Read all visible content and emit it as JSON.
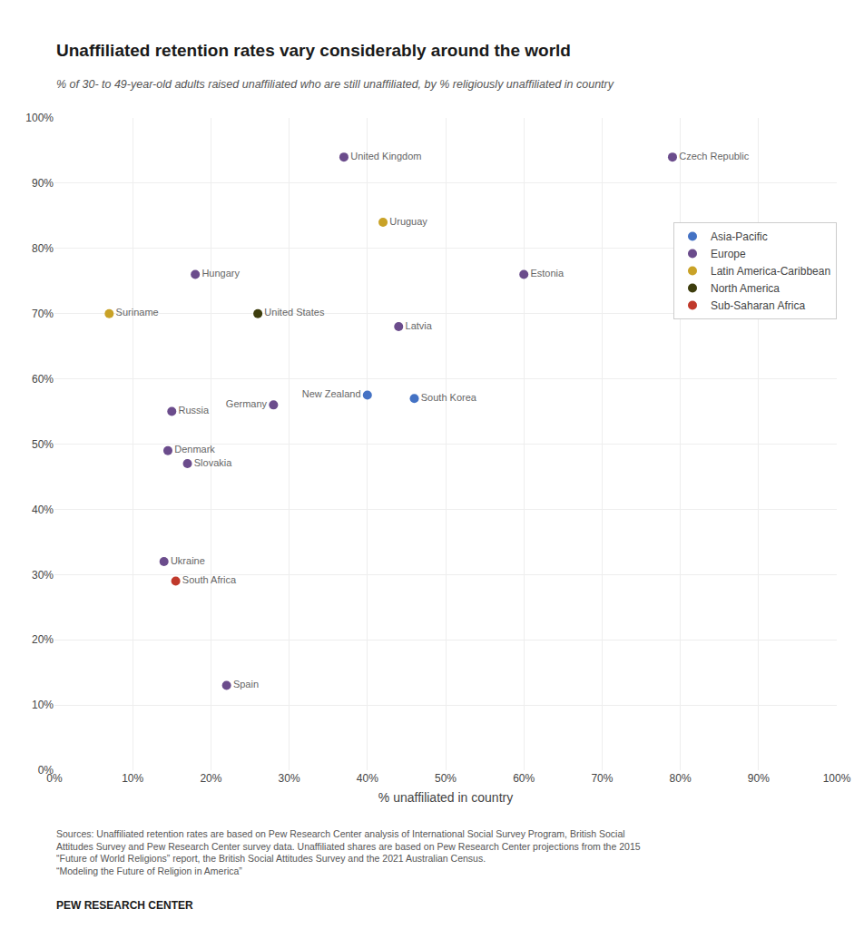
{
  "chart_data": {
    "type": "scatter",
    "title": "Unaffiliated retention rates vary considerably around the world",
    "subtitle": "% of 30- to 49-year-old adults raised unaffiliated who are still unaffiliated, by % religiously unaffiliated in country",
    "xlabel": "% unaffiliated in country",
    "annotations": [
      "Sources: Unaffiliated retention rates are based on Pew Research Center analysis of International Social Survey Program, British Social\nAttitudes Survey and Pew Research Center survey data. Unaffiliated shares are based on Pew Research Center projections from the 2015\n“Future of World Religions” report, the British Social Attitudes Survey and the 2021 Australian Census.\n“Modeling the Future of Religion in America”",
      "PEW RESEARCH CENTER"
    ],
    "series": [
      {
        "name": "Asia-Pacific",
        "color": "#4472c4",
        "x": [
          0.4,
          0.46
        ],
        "y": [
          0.575,
          0.57
        ],
        "labels": [
          "New Zealand",
          "South Korea"
        ]
      },
      {
        "name": "Europe",
        "color": "#6b4c8c",
        "x": [
          0.18,
          0.15,
          0.145,
          0.17,
          0.14,
          0.22,
          0.28,
          0.37,
          0.44,
          0.6,
          0.79
        ],
        "y": [
          0.76,
          0.55,
          0.49,
          0.47,
          0.32,
          0.13,
          0.56,
          0.94,
          0.68,
          0.76,
          0.94
        ],
        "labels": [
          "Hungary",
          "Russia",
          "Denmark",
          "Slovakia",
          "Ukraine",
          "Spain",
          "Germany",
          "United Kingdom",
          "Latvia",
          "Estonia",
          "Czech Republic"
        ]
      },
      {
        "name": "Latin America-Caribbean",
        "color": "#c9a227",
        "x": [
          0.07,
          0.42
        ],
        "y": [
          0.7,
          0.84
        ],
        "labels": [
          "Suriname",
          "Uruguay"
        ]
      },
      {
        "name": "North America",
        "color": "#3d3d0d",
        "x": [
          0.26
        ],
        "y": [
          0.7
        ],
        "labels": [
          "United States"
        ]
      },
      {
        "name": "Sub-Saharan Africa",
        "color": "#c0392b",
        "x": [
          0.155
        ],
        "y": [
          0.29
        ],
        "labels": [
          "South Africa"
        ]
      }
    ],
    "xlim": [
      0,
      1
    ],
    "ylim": [
      0,
      1
    ],
    "xticks": [
      {
        "value": 0,
        "label": "0%"
      },
      {
        "value": 0.1,
        "label": "10%"
      },
      {
        "value": 0.2,
        "label": "20%"
      },
      {
        "value": 0.3,
        "label": "30%"
      },
      {
        "value": 0.4,
        "label": "40%"
      },
      {
        "value": 0.5,
        "label": "50%"
      },
      {
        "value": 0.6,
        "label": "60%"
      },
      {
        "value": 0.7,
        "label": "70%"
      },
      {
        "value": 0.8,
        "label": "80%"
      },
      {
        "value": 0.9,
        "label": "90%"
      },
      {
        "value": 1,
        "label": "100%"
      }
    ],
    "yticks": [
      {
        "value": 0,
        "label": "0%"
      },
      {
        "value": 0.1,
        "label": "10%"
      },
      {
        "value": 0.2,
        "label": "20%"
      },
      {
        "value": 0.3,
        "label": "30%"
      },
      {
        "value": 0.4,
        "label": "40%"
      },
      {
        "value": 0.5,
        "label": "50%"
      },
      {
        "value": 0.6,
        "label": "60%"
      },
      {
        "value": 0.7,
        "label": "70%"
      },
      {
        "value": 0.8,
        "label": "80%"
      },
      {
        "value": 0.9,
        "label": "90%"
      },
      {
        "value": 1,
        "label": "100%"
      }
    ],
    "grid": true,
    "legend": "upper right"
  }
}
